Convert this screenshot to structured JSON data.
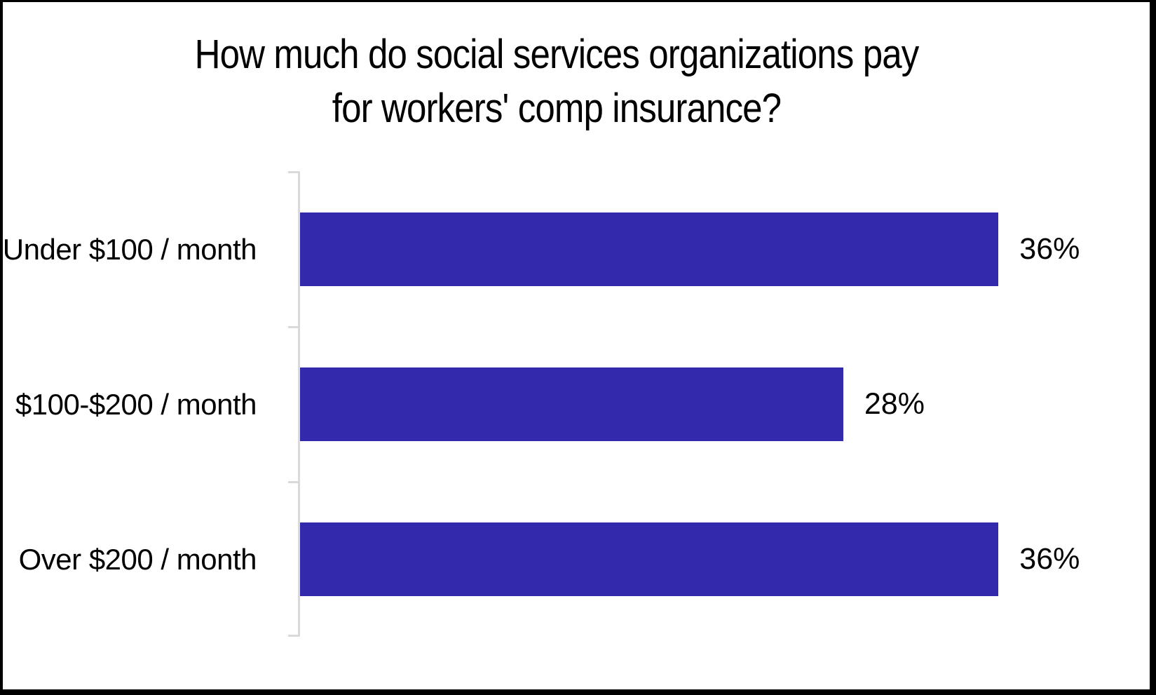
{
  "title_lines": [
    "How much do social services organizations pay",
    "for workers' comp insurance?"
  ],
  "chart_data": {
    "type": "bar",
    "orientation": "horizontal",
    "title": "How much do social services organizations pay for workers' comp insurance?",
    "categories": [
      "Under $100 / month",
      "$100-$200 / month",
      "Over $200 / month"
    ],
    "values": [
      36,
      28,
      36
    ],
    "value_labels": [
      "36%",
      "28%",
      "36%"
    ],
    "xlabel": "",
    "ylabel": "",
    "xlim": [
      0,
      40
    ],
    "grid": false,
    "legend": false,
    "bar_color": "#3329ac",
    "axis_color": "#d9d9d9",
    "text_color": "#000000",
    "background_color": "#ffffff"
  }
}
